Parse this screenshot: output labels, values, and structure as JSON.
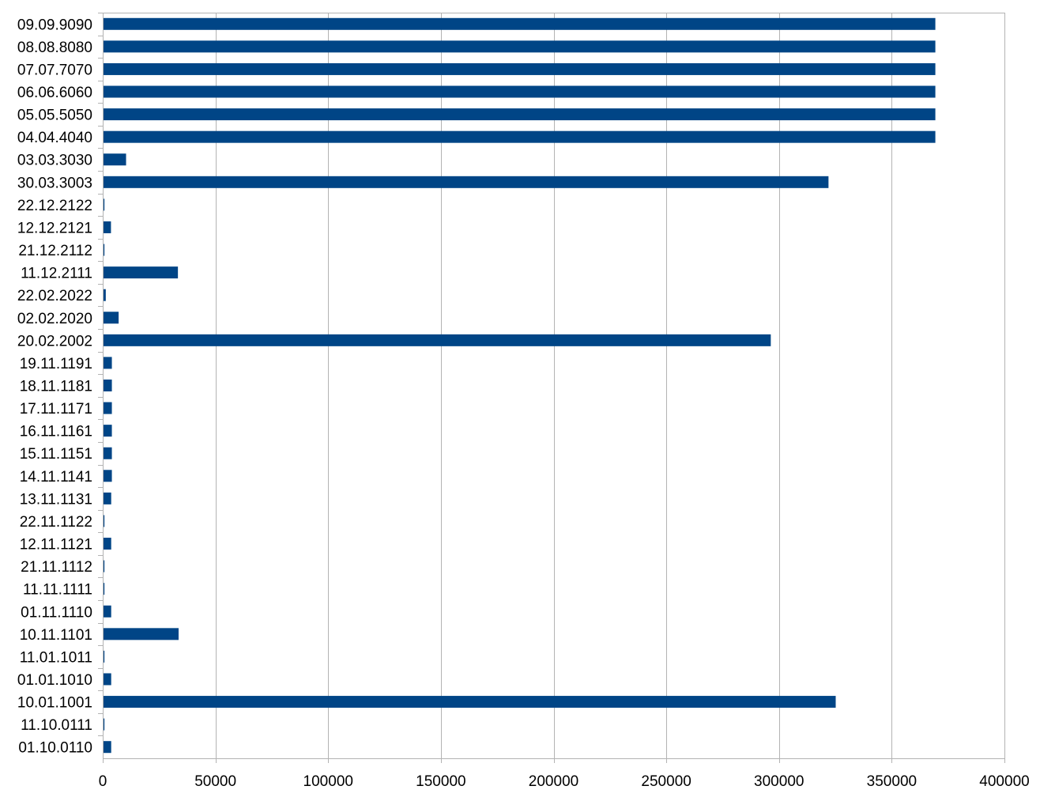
{
  "chart_data": {
    "type": "bar",
    "orientation": "horizontal",
    "title": "",
    "xlabel": "",
    "ylabel": "",
    "xlim": [
      0,
      400000
    ],
    "x_ticks": [
      0,
      50000,
      100000,
      150000,
      200000,
      250000,
      300000,
      350000,
      400000
    ],
    "grid": "vertical",
    "legend": "none",
    "bar_color": "#004586",
    "categories": [
      "09.09.9090",
      "08.08.8080",
      "07.07.7070",
      "06.06.6060",
      "05.05.5050",
      "04.04.4040",
      "03.03.3030",
      "30.03.3003",
      "22.12.2122",
      "12.12.2121",
      "21.12.2112",
      "11.12.2111",
      "22.02.2022",
      "02.02.2020",
      "20.02.2002",
      "19.11.1191",
      "18.11.1181",
      "17.11.1171",
      "16.11.1161",
      "15.11.1151",
      "14.11.1141",
      "13.11.1131",
      "22.11.1122",
      "12.11.1121",
      "21.11.1112",
      "11.11.1111",
      "01.11.1110",
      "10.11.1101",
      "11.01.1011",
      "01.01.1010",
      "10.01.1001",
      "11.10.0111",
      "01.10.0110"
    ],
    "values": [
      369000,
      369000,
      369000,
      369000,
      369000,
      369000,
      10000,
      321600,
      400,
      3300,
      400,
      33000,
      1000,
      6700,
      296000,
      3700,
      3700,
      3700,
      3700,
      3700,
      3700,
      3400,
      400,
      3400,
      400,
      400,
      3400,
      33300,
      400,
      3400,
      324800,
      400,
      3400
    ]
  }
}
